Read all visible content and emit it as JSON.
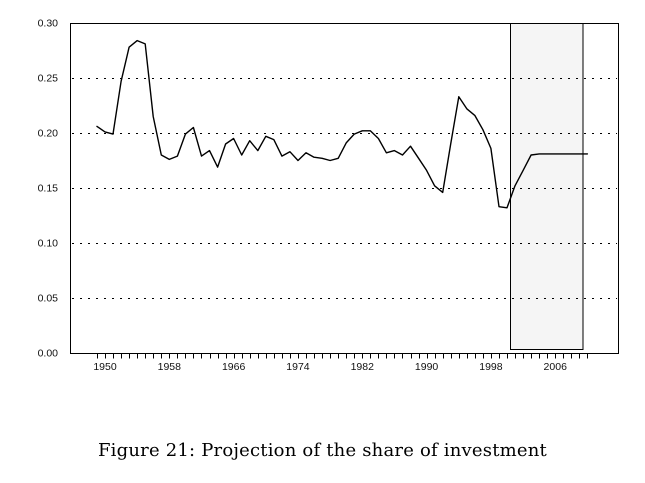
{
  "figure": {
    "caption": "Figure 21: Projection of the share of investment"
  },
  "colors": {
    "background": "#ffffff",
    "line": "#000000",
    "frame": "#000000",
    "gridline": "#000000",
    "projection_band_fill": "#f5f5f5",
    "text": "#111111"
  },
  "chart_data": {
    "type": "line",
    "title": "",
    "xlabel": "",
    "ylabel": "",
    "ylim": [
      0.0,
      0.3
    ],
    "ytick_values": [
      0.0,
      0.05,
      0.1,
      0.15,
      0.2,
      0.25,
      0.3
    ],
    "ytick_labels": [
      "0.00",
      "0.05",
      "0.10",
      "0.15",
      "0.20",
      "0.25",
      "0.30"
    ],
    "gridline_values": [
      0.05,
      0.1,
      0.15,
      0.2,
      0.25
    ],
    "grid_style": "dotted-horizontal",
    "xtick_years": [
      1950,
      1958,
      1966,
      1974,
      1982,
      1990,
      1998,
      2006
    ],
    "xtick_labels": [
      "1950",
      "1958",
      "1966",
      "1974",
      "1982",
      "1990",
      "1998",
      "2006"
    ],
    "minor_ticks": {
      "from": 1949,
      "to": 2010,
      "step": 1
    },
    "projection_band": {
      "start_year": 2000.4,
      "end_year": 2009.4,
      "fill": "#f5f5f5"
    },
    "legend": "none",
    "x": [
      1949,
      1950,
      1951,
      1952,
      1953,
      1954,
      1955,
      1956,
      1957,
      1958,
      1959,
      1960,
      1961,
      1962,
      1963,
      1964,
      1965,
      1966,
      1967,
      1968,
      1969,
      1970,
      1971,
      1972,
      1973,
      1974,
      1975,
      1976,
      1977,
      1978,
      1979,
      1980,
      1981,
      1982,
      1983,
      1984,
      1985,
      1986,
      1987,
      1988,
      1989,
      1990,
      1991,
      1992,
      1993,
      1994,
      1995,
      1996,
      1997,
      1998,
      1999,
      2000,
      2001,
      2002,
      2003,
      2004,
      2005,
      2006,
      2007,
      2008,
      2009,
      2010
    ],
    "series": [
      {
        "name": "Share of investment",
        "color": "#000000",
        "values": [
          0.206,
          0.201,
          0.199,
          0.247,
          0.278,
          0.284,
          0.281,
          0.215,
          0.18,
          0.176,
          0.179,
          0.199,
          0.205,
          0.179,
          0.184,
          0.169,
          0.19,
          0.195,
          0.18,
          0.193,
          0.184,
          0.197,
          0.194,
          0.179,
          0.183,
          0.175,
          0.182,
          0.178,
          0.177,
          0.175,
          0.177,
          0.191,
          0.199,
          0.202,
          0.202,
          0.195,
          0.182,
          0.184,
          0.18,
          0.188,
          0.177,
          0.166,
          0.152,
          0.146,
          0.19,
          0.233,
          0.222,
          0.216,
          0.203,
          0.186,
          0.133,
          0.132,
          0.152,
          0.166,
          0.18,
          0.181,
          0.181,
          0.181,
          0.181,
          0.181,
          0.181,
          0.181
        ]
      }
    ]
  }
}
